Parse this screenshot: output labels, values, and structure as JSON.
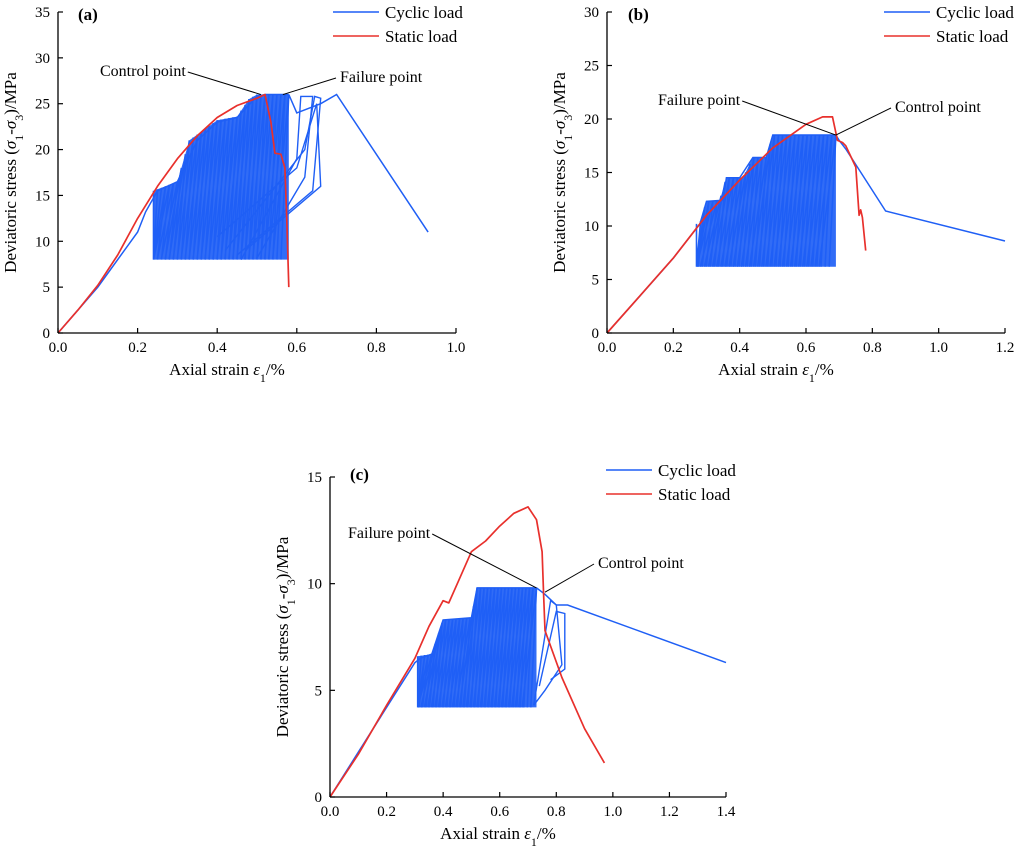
{
  "colors": {
    "cyclic": "#1f5ff5",
    "static": "#e8302c",
    "axis": "#000000"
  },
  "chart_data": [
    {
      "type": "line",
      "panel_label": "(a)",
      "xlabel": "Axial strain ε1/%",
      "ylabel": "Deviatoric stress (σ1-σ3)/MPa",
      "xlim": [
        0,
        1.0
      ],
      "ylim": [
        0,
        35
      ],
      "x_ticks": [
        0,
        0.2,
        0.4,
        0.6,
        0.8,
        1.0
      ],
      "x_tick_labels": [
        "0.0",
        "0.2",
        "0.4",
        "0.6",
        "0.8",
        "1.0"
      ],
      "y_ticks": [
        0,
        5,
        10,
        15,
        20,
        25,
        30,
        35
      ],
      "y_tick_labels": [
        "0",
        "5",
        "10",
        "15",
        "20",
        "25",
        "30",
        "35"
      ],
      "legend": [
        "Cyclic load",
        "Static  load"
      ],
      "annotations": [
        {
          "text": "Control point",
          "x": 0.51,
          "y": 26.0,
          "side": "left"
        },
        {
          "text": "Failure point",
          "x": 0.565,
          "y": 26.0,
          "side": "right"
        }
      ],
      "series": [
        {
          "name": "Static  load",
          "points": [
            [
              0,
              0
            ],
            [
              0.05,
              2.5
            ],
            [
              0.1,
              5.2
            ],
            [
              0.15,
              8.5
            ],
            [
              0.2,
              12.5
            ],
            [
              0.25,
              16.0
            ],
            [
              0.3,
              19.0
            ],
            [
              0.35,
              21.5
            ],
            [
              0.4,
              23.5
            ],
            [
              0.45,
              24.8
            ],
            [
              0.5,
              25.6
            ],
            [
              0.52,
              26.0
            ],
            [
              0.535,
              23.0
            ],
            [
              0.545,
              19.6
            ],
            [
              0.56,
              19.5
            ],
            [
              0.57,
              18.0
            ],
            [
              0.575,
              12.0
            ],
            [
              0.58,
              5.0
            ]
          ]
        },
        {
          "name": "Cyclic load",
          "envelope": [
            [
              0,
              0
            ],
            [
              0.1,
              5.0
            ],
            [
              0.2,
              11.0
            ],
            [
              0.22,
              13.2
            ],
            [
              0.25,
              15.5
            ],
            [
              0.3,
              16.5
            ],
            [
              0.35,
              21.0
            ],
            [
              0.4,
              23.0
            ],
            [
              0.45,
              23.5
            ],
            [
              0.5,
              25.8
            ],
            [
              0.52,
              26.0
            ],
            [
              0.58,
              26.0
            ]
          ],
          "loop_band": {
            "top": [
              [
                0.24,
                15.5
              ],
              [
                0.3,
                16.5
              ],
              [
                0.33,
                21.0
              ],
              [
                0.4,
                23.2
              ],
              [
                0.45,
                23.6
              ],
              [
                0.48,
                25.5
              ],
              [
                0.5,
                26.0
              ],
              [
                0.58,
                26.0
              ]
            ],
            "bottom": [
              [
                0.24,
                8.0
              ],
              [
                0.58,
                8.0
              ]
            ],
            "right_edge": [
              [
                0.58,
                26.0
              ],
              [
                0.58,
                8.0
              ]
            ],
            "left_edge": [
              [
                0.24,
                8.0
              ],
              [
                0.24,
                15.5
              ]
            ],
            "loops": 34
          },
          "extra_loops": [
            [
              [
                0.46,
                8.0
              ],
              [
                0.6,
                19.0
              ],
              [
                0.61,
                25.8
              ],
              [
                0.64,
                25.8
              ],
              [
                0.62,
                17.0
              ],
              [
                0.5,
                8.2
              ]
            ],
            [
              [
                0.42,
                9.0
              ],
              [
                0.62,
                20.0
              ],
              [
                0.645,
                25.8
              ],
              [
                0.66,
                25.6
              ],
              [
                0.64,
                15.5
              ],
              [
                0.45,
                8.5
              ]
            ],
            [
              [
                0.4,
                10.5
              ],
              [
                0.6,
                18.0
              ],
              [
                0.65,
                25.0
              ],
              [
                0.66,
                16.0
              ],
              [
                0.47,
                9.0
              ]
            ]
          ],
          "post_peak": [
            [
              0.58,
              26.0
            ],
            [
              0.6,
              24.0
            ],
            [
              0.66,
              25.0
            ],
            [
              0.7,
              26.0
            ],
            [
              0.93,
              11.0
            ]
          ]
        }
      ]
    },
    {
      "type": "line",
      "panel_label": "(b)",
      "xlabel": "Axial strain ε1/%",
      "ylabel": "Deviatoric stress (σ1-σ3)/MPa",
      "xlim": [
        0,
        1.2
      ],
      "ylim": [
        0,
        30
      ],
      "x_ticks": [
        0,
        0.2,
        0.4,
        0.6,
        0.8,
        1.0,
        1.2
      ],
      "x_tick_labels": [
        "0.0",
        "0.2",
        "0.4",
        "0.6",
        "0.8",
        "1.0",
        "1.2"
      ],
      "y_ticks": [
        0,
        5,
        10,
        15,
        20,
        25,
        30
      ],
      "y_tick_labels": [
        "0",
        "5",
        "10",
        "15",
        "20",
        "25",
        "30"
      ],
      "legend": [
        "Cyclic load",
        "Static  load"
      ],
      "annotations": [
        {
          "text": "Failure point",
          "x": 0.69,
          "y": 18.5,
          "side": "left"
        },
        {
          "text": "Control point",
          "x": 0.69,
          "y": 18.5,
          "side": "right"
        }
      ],
      "series": [
        {
          "name": "Static  load",
          "points": [
            [
              0,
              0
            ],
            [
              0.1,
              3.5
            ],
            [
              0.2,
              7.0
            ],
            [
              0.3,
              11.0
            ],
            [
              0.4,
              14.3
            ],
            [
              0.5,
              17.3
            ],
            [
              0.6,
              19.5
            ],
            [
              0.65,
              20.2
            ],
            [
              0.68,
              20.2
            ],
            [
              0.695,
              18.0
            ],
            [
              0.71,
              17.8
            ],
            [
              0.72,
              17.5
            ],
            [
              0.75,
              15.5
            ],
            [
              0.76,
              11.0
            ],
            [
              0.765,
              11.5
            ],
            [
              0.77,
              10.8
            ],
            [
              0.78,
              7.7
            ]
          ]
        },
        {
          "name": "Cyclic load",
          "envelope": [
            [
              0,
              0
            ],
            [
              0.1,
              3.5
            ],
            [
              0.2,
              7.0
            ],
            [
              0.28,
              10.2
            ],
            [
              0.3,
              12.3
            ],
            [
              0.35,
              12.4
            ],
            [
              0.36,
              14.5
            ],
            [
              0.4,
              14.5
            ],
            [
              0.44,
              16.4
            ],
            [
              0.48,
              16.4
            ],
            [
              0.5,
              18.5
            ],
            [
              0.69,
              18.5
            ]
          ],
          "loop_band": {
            "top": [
              [
                0.28,
                10.2
              ],
              [
                0.3,
                12.3
              ],
              [
                0.34,
                12.4
              ],
              [
                0.36,
                14.5
              ],
              [
                0.41,
                14.5
              ],
              [
                0.44,
                16.4
              ],
              [
                0.48,
                16.4
              ],
              [
                0.5,
                18.5
              ],
              [
                0.69,
                18.5
              ]
            ],
            "bottom": [
              [
                0.27,
                6.2
              ],
              [
                0.67,
                6.2
              ]
            ],
            "right_edge": [
              [
                0.69,
                18.5
              ],
              [
                0.67,
                6.2
              ]
            ],
            "left_edge": [
              [
                0.27,
                6.2
              ],
              [
                0.28,
                10.2
              ]
            ],
            "loops": 34
          },
          "extra_loops": [],
          "post_peak": [
            [
              0.69,
              18.5
            ],
            [
              0.7,
              18.0
            ],
            [
              0.72,
              17.2
            ],
            [
              0.84,
              11.4
            ],
            [
              1.2,
              8.6
            ]
          ]
        }
      ]
    },
    {
      "type": "line",
      "panel_label": "(c)",
      "xlabel": "Axial strain ε1/%",
      "ylabel": "Deviatoric stress (σ1-σ3)/MPa",
      "xlim": [
        0,
        1.4
      ],
      "ylim": [
        0,
        15
      ],
      "x_ticks": [
        0,
        0.2,
        0.4,
        0.6,
        0.8,
        1.0,
        1.2,
        1.4
      ],
      "x_tick_labels": [
        "0.0",
        "0.2",
        "0.4",
        "0.6",
        "0.8",
        "1.0",
        "1.2",
        "1.4"
      ],
      "y_ticks": [
        0,
        5,
        10,
        15
      ],
      "y_tick_labels": [
        "0",
        "5",
        "10",
        "15"
      ],
      "legend": [
        "Cyclic load",
        "Static  load"
      ],
      "annotations": [
        {
          "text": "Failure point",
          "x": 0.73,
          "y": 9.8,
          "side": "left"
        },
        {
          "text": "Control point",
          "x": 0.76,
          "y": 9.6,
          "side": "right"
        }
      ],
      "series": [
        {
          "name": "Static  load",
          "points": [
            [
              0,
              0
            ],
            [
              0.1,
              2.0
            ],
            [
              0.2,
              4.3
            ],
            [
              0.3,
              6.5
            ],
            [
              0.35,
              8.0
            ],
            [
              0.4,
              9.2
            ],
            [
              0.42,
              9.1
            ],
            [
              0.45,
              10.0
            ],
            [
              0.5,
              11.5
            ],
            [
              0.55,
              12.0
            ],
            [
              0.6,
              12.7
            ],
            [
              0.65,
              13.3
            ],
            [
              0.7,
              13.6
            ],
            [
              0.73,
              13.0
            ],
            [
              0.75,
              11.5
            ],
            [
              0.755,
              9.5
            ],
            [
              0.76,
              7.8
            ],
            [
              0.82,
              5.6
            ],
            [
              0.9,
              3.2
            ],
            [
              0.97,
              1.6
            ]
          ]
        },
        {
          "name": "Cyclic load",
          "envelope": [
            [
              0,
              0
            ],
            [
              0.1,
              2.1
            ],
            [
              0.2,
              4.2
            ],
            [
              0.3,
              6.3
            ],
            [
              0.32,
              6.5
            ],
            [
              0.36,
              6.7
            ],
            [
              0.4,
              8.3
            ],
            [
              0.5,
              8.4
            ],
            [
              0.52,
              9.8
            ],
            [
              0.73,
              9.8
            ]
          ],
          "loop_band": {
            "top": [
              [
                0.31,
                6.6
              ],
              [
                0.36,
                6.7
              ],
              [
                0.4,
                8.3
              ],
              [
                0.5,
                8.4
              ],
              [
                0.52,
                9.8
              ],
              [
                0.73,
                9.8
              ]
            ],
            "bottom": [
              [
                0.31,
                4.2
              ],
              [
                0.71,
                4.2
              ]
            ],
            "right_edge": [
              [
                0.73,
                9.8
              ],
              [
                0.71,
                4.2
              ]
            ],
            "left_edge": [
              [
                0.31,
                4.2
              ],
              [
                0.31,
                6.6
              ]
            ],
            "loops": 34
          },
          "extra_loops": [
            [
              [
                0.72,
                4.3
              ],
              [
                0.78,
                9.2
              ],
              [
                0.8,
                9.0
              ],
              [
                0.82,
                6.2
              ],
              [
                0.76,
                5.0
              ],
              [
                0.72,
                4.3
              ]
            ],
            [
              [
                0.74,
                5.2
              ],
              [
                0.8,
                8.7
              ],
              [
                0.83,
                8.6
              ],
              [
                0.83,
                6.0
              ],
              [
                0.78,
                5.5
              ]
            ]
          ],
          "post_peak": [
            [
              0.73,
              9.8
            ],
            [
              0.76,
              9.5
            ],
            [
              0.8,
              9.0
            ],
            [
              0.84,
              9.0
            ],
            [
              1.4,
              6.3
            ]
          ]
        }
      ]
    }
  ]
}
